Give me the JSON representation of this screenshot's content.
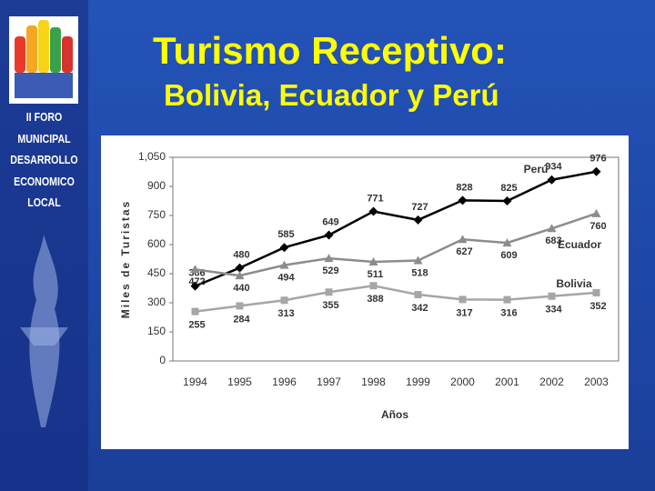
{
  "slide": {
    "title": "Turismo Receptivo:",
    "subtitle": "Bolivia, Ecuador y Perú",
    "sidebar": [
      "II FORO",
      "MUNICIPAL",
      "DESARROLLO",
      "ECONOMICO",
      "LOCAL"
    ]
  },
  "chart_data": {
    "type": "line",
    "y_label": "Miles de Turistas",
    "x_label": "Años",
    "categories": [
      "1994",
      "1995",
      "1996",
      "1997",
      "1998",
      "1999",
      "2000",
      "2001",
      "2002",
      "2003"
    ],
    "series": [
      {
        "name": "Perú",
        "color": "#000000",
        "marker": "diamond",
        "values": [
          386,
          480,
          585,
          649,
          771,
          727,
          828,
          825,
          934,
          976
        ]
      },
      {
        "name": "Ecuador",
        "color": "#8c8c8c",
        "marker": "triangle",
        "values": [
          472,
          440,
          494,
          529,
          511,
          518,
          627,
          609,
          683,
          760
        ]
      },
      {
        "name": "Bolivia",
        "color": "#a6a6a6",
        "marker": "square",
        "values": [
          255,
          284,
          313,
          355,
          388,
          342,
          317,
          316,
          334,
          352
        ]
      }
    ],
    "ylim": [
      0,
      1050
    ],
    "yticks": [
      0,
      150,
      300,
      450,
      600,
      750,
      900,
      {
        "value": 1050,
        "label": "1,050"
      }
    ],
    "grid": false
  }
}
